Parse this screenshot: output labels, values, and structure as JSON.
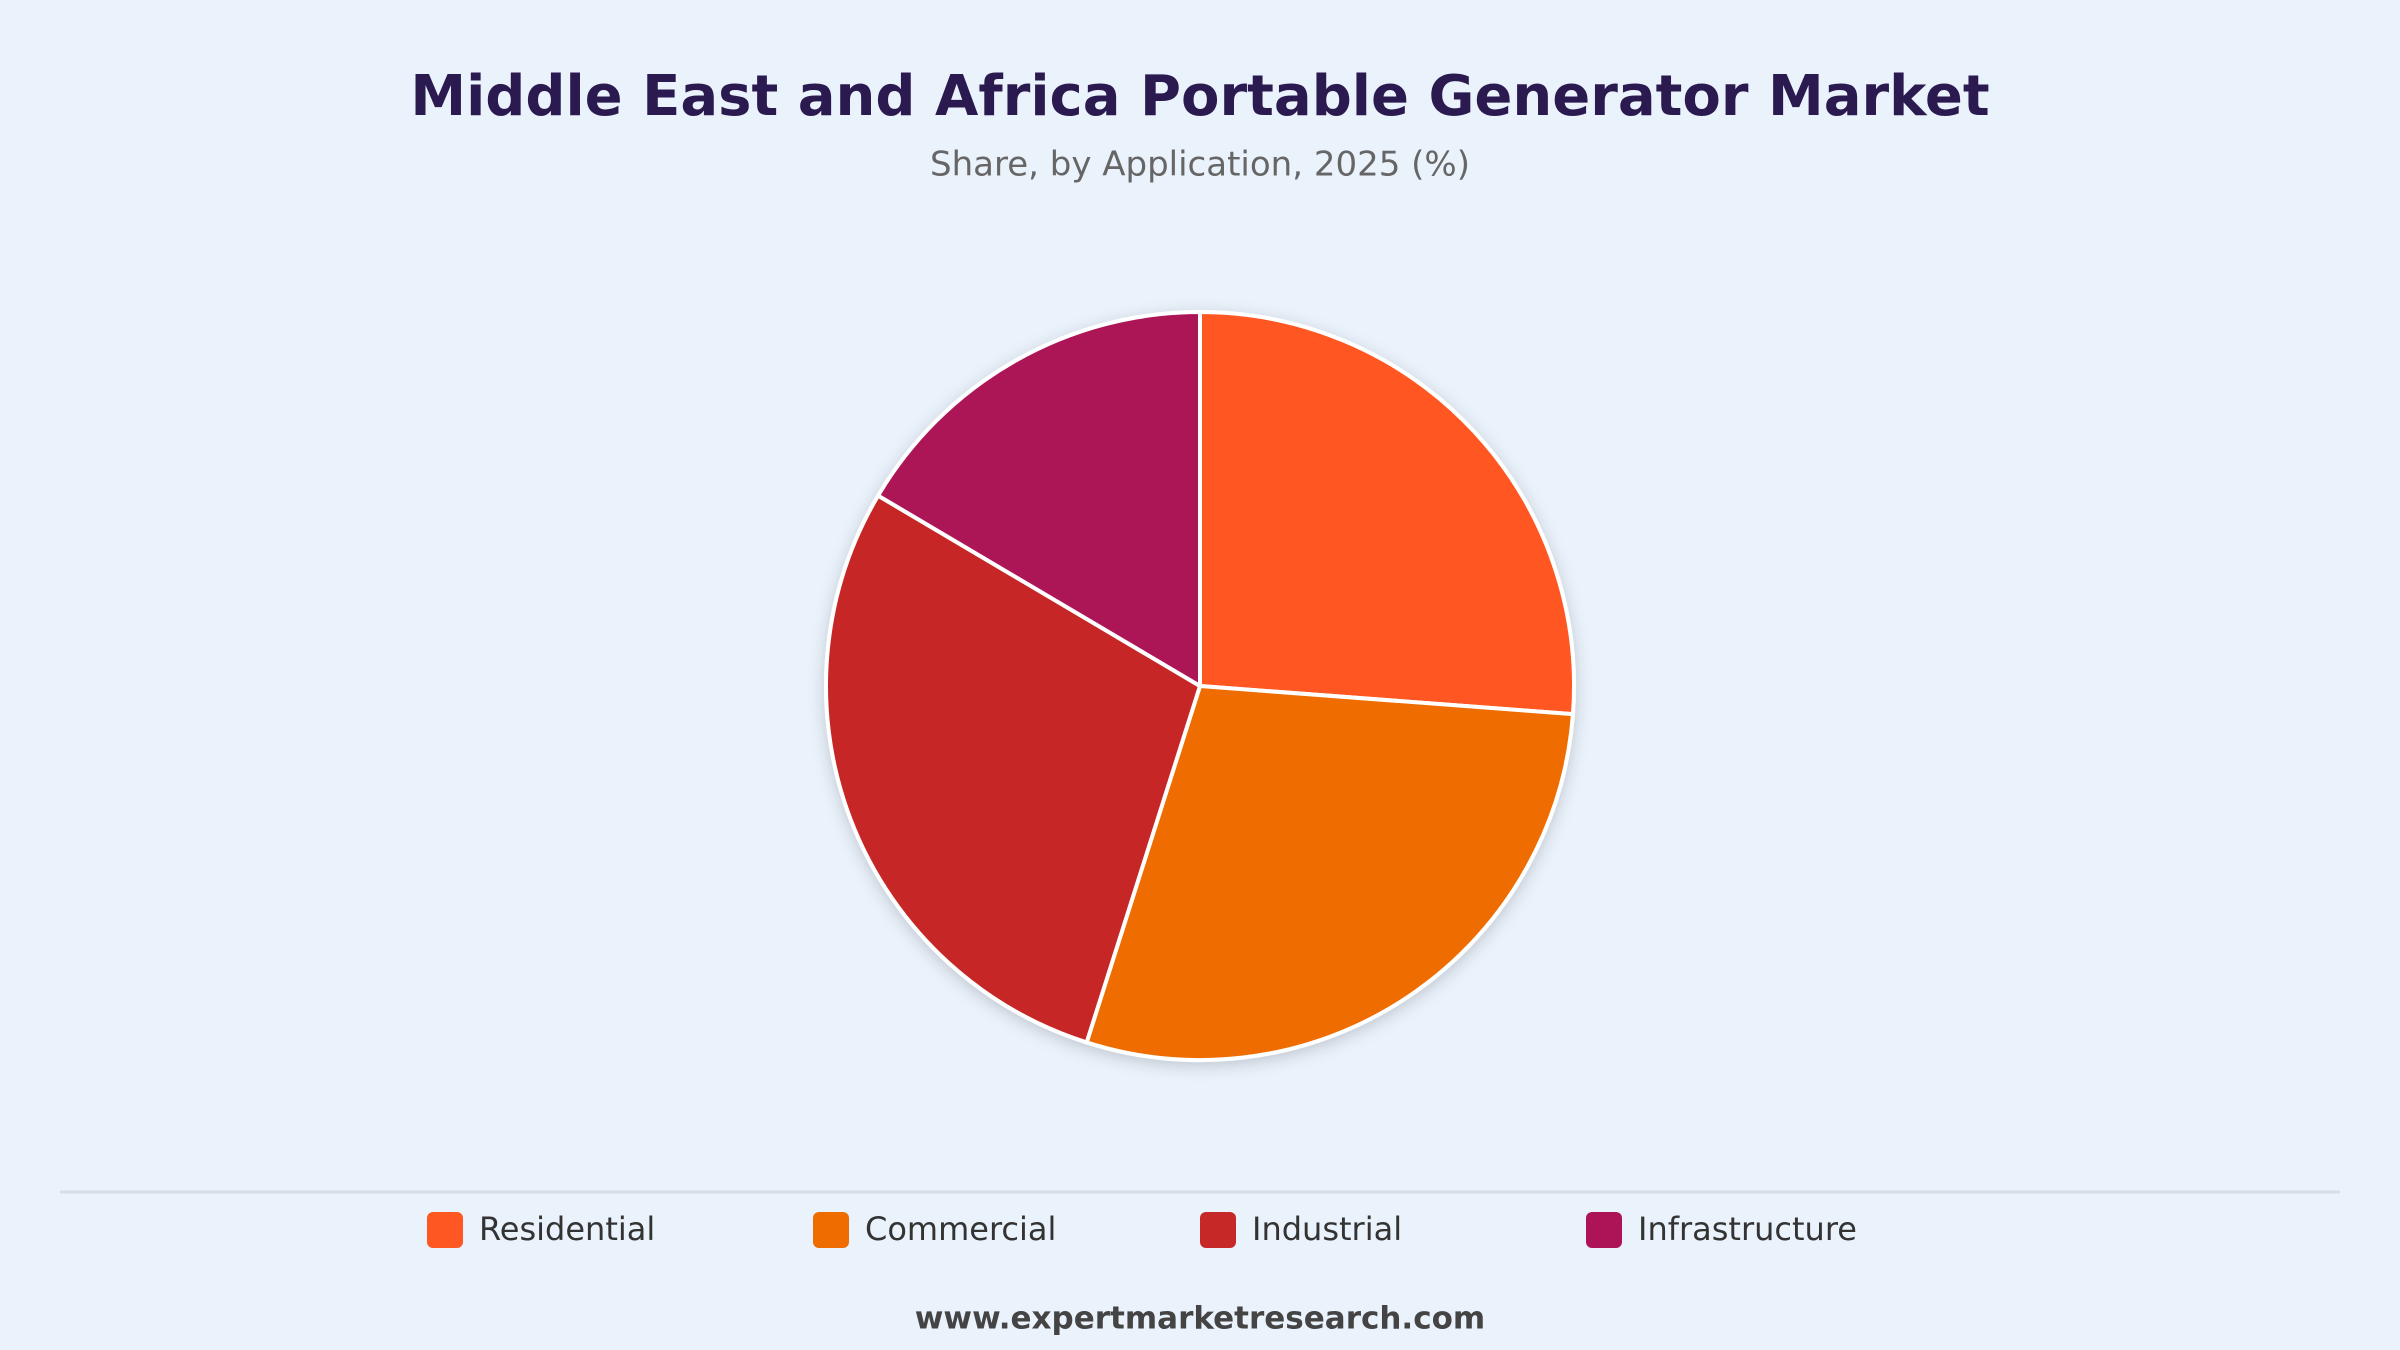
{
  "chart_data": {
    "type": "pie",
    "title": "Middle East and Africa Portable Generator Market",
    "subtitle": "Share, by Application, 2025 (%)",
    "categories": [
      "Residential",
      "Commercial",
      "Industrial",
      "Infrastructure"
    ],
    "values": [
      26.2,
      28.7,
      28.6,
      16.5
    ],
    "colors": [
      "#ff5722",
      "#ef6c00",
      "#c62828",
      "#ad1457"
    ],
    "legend": "bottom"
  },
  "footer": "www.expertmarketresearch.com"
}
